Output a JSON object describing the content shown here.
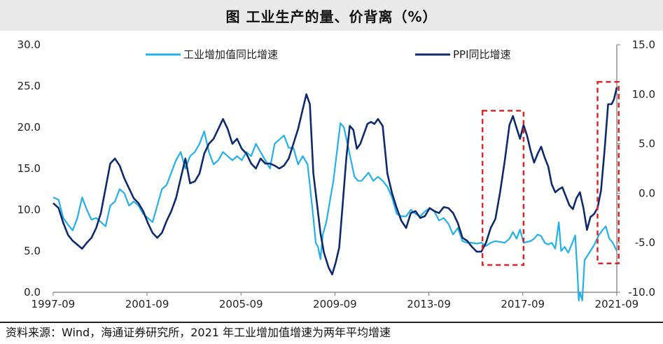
{
  "chart_data": {
    "type": "line",
    "title": "图  工业生产的量、价背离（%）",
    "left_axis": {
      "ylim": [
        0,
        30
      ],
      "ticks": [
        "0.0",
        "5.0",
        "10.0",
        "15.0",
        "20.0",
        "25.0",
        "30.0"
      ]
    },
    "right_axis": {
      "ylim": [
        -10,
        15
      ],
      "ticks": [
        "-10.0",
        "-5.0",
        "0.0",
        "5.0",
        "10.0",
        "15.0"
      ]
    },
    "x_ticks": [
      "1997-09",
      "2001-09",
      "2005-09",
      "2009-09",
      "2013-09",
      "2017-09",
      "2021-09"
    ],
    "x_range": [
      1997.67,
      2021.67
    ],
    "series": [
      {
        "name": "工业增加值同比增速",
        "axis": "left",
        "color": "#23b0e8",
        "points": [
          [
            1997.67,
            11.5
          ],
          [
            1997.9,
            11.2
          ],
          [
            1998.1,
            9.0
          ],
          [
            1998.3,
            8.2
          ],
          [
            1998.5,
            7.5
          ],
          [
            1998.7,
            9.0
          ],
          [
            1998.9,
            11.5
          ],
          [
            1999.1,
            10.0
          ],
          [
            1999.3,
            8.8
          ],
          [
            1999.5,
            9.0
          ],
          [
            1999.7,
            8.5
          ],
          [
            1999.9,
            8.0
          ],
          [
            2000.1,
            10.5
          ],
          [
            2000.3,
            11.0
          ],
          [
            2000.5,
            12.5
          ],
          [
            2000.7,
            12.0
          ],
          [
            2000.9,
            10.5
          ],
          [
            2001.1,
            11.0
          ],
          [
            2001.3,
            10.5
          ],
          [
            2001.5,
            9.5
          ],
          [
            2001.7,
            9.0
          ],
          [
            2001.9,
            8.5
          ],
          [
            2002.1,
            10.5
          ],
          [
            2002.3,
            12.5
          ],
          [
            2002.5,
            13.0
          ],
          [
            2002.7,
            14.5
          ],
          [
            2002.9,
            16.0
          ],
          [
            2003.1,
            17.0
          ],
          [
            2003.3,
            15.0
          ],
          [
            2003.5,
            16.5
          ],
          [
            2003.7,
            17.0
          ],
          [
            2003.9,
            18.0
          ],
          [
            2004.1,
            19.5
          ],
          [
            2004.3,
            17.0
          ],
          [
            2004.5,
            15.5
          ],
          [
            2004.7,
            16.0
          ],
          [
            2004.9,
            17.0
          ],
          [
            2005.1,
            16.5
          ],
          [
            2005.3,
            16.0
          ],
          [
            2005.5,
            16.5
          ],
          [
            2005.7,
            16.0
          ],
          [
            2005.9,
            17.0
          ],
          [
            2006.1,
            16.5
          ],
          [
            2006.3,
            18.0
          ],
          [
            2006.5,
            17.0
          ],
          [
            2006.7,
            16.0
          ],
          [
            2006.9,
            15.0
          ],
          [
            2007.1,
            18.0
          ],
          [
            2007.3,
            18.5
          ],
          [
            2007.5,
            19.0
          ],
          [
            2007.7,
            17.5
          ],
          [
            2007.9,
            17.5
          ],
          [
            2008.1,
            15.5
          ],
          [
            2008.3,
            16.5
          ],
          [
            2008.5,
            15.5
          ],
          [
            2008.6,
            13.0
          ],
          [
            2008.75,
            9.0
          ],
          [
            2008.85,
            6.0
          ],
          [
            2008.95,
            5.5
          ],
          [
            2009.05,
            4.0
          ],
          [
            2009.15,
            7.0
          ],
          [
            2009.3,
            8.5
          ],
          [
            2009.45,
            11.0
          ],
          [
            2009.6,
            13.5
          ],
          [
            2009.75,
            17.0
          ],
          [
            2009.9,
            20.5
          ],
          [
            2010.05,
            20.0
          ],
          [
            2010.2,
            18.0
          ],
          [
            2010.35,
            16.0
          ],
          [
            2010.5,
            14.0
          ],
          [
            2010.65,
            13.5
          ],
          [
            2010.8,
            13.5
          ],
          [
            2010.95,
            14.0
          ],
          [
            2011.1,
            14.5
          ],
          [
            2011.3,
            13.5
          ],
          [
            2011.5,
            14.0
          ],
          [
            2011.7,
            13.5
          ],
          [
            2011.9,
            12.8
          ],
          [
            2012.1,
            11.5
          ],
          [
            2012.3,
            9.5
          ],
          [
            2012.5,
            9.2
          ],
          [
            2012.7,
            9.2
          ],
          [
            2012.9,
            10.0
          ],
          [
            2013.1,
            9.5
          ],
          [
            2013.3,
            9.2
          ],
          [
            2013.5,
            9.8
          ],
          [
            2013.7,
            10.2
          ],
          [
            2013.9,
            9.8
          ],
          [
            2014.1,
            8.7
          ],
          [
            2014.3,
            9.0
          ],
          [
            2014.5,
            8.3
          ],
          [
            2014.7,
            7.0
          ],
          [
            2014.9,
            7.8
          ],
          [
            2015.1,
            6.2
          ],
          [
            2015.3,
            6.0
          ],
          [
            2015.5,
            6.0
          ],
          [
            2015.7,
            5.9
          ],
          [
            2015.9,
            6.0
          ],
          [
            2016.1,
            5.6
          ],
          [
            2016.3,
            6.0
          ],
          [
            2016.5,
            6.2
          ],
          [
            2016.7,
            6.1
          ],
          [
            2016.9,
            6.0
          ],
          [
            2017.1,
            6.5
          ],
          [
            2017.25,
            7.3
          ],
          [
            2017.4,
            6.5
          ],
          [
            2017.55,
            7.6
          ],
          [
            2017.7,
            6.0
          ],
          [
            2017.85,
            6.1
          ],
          [
            2018.0,
            6.2
          ],
          [
            2018.15,
            6.5
          ],
          [
            2018.3,
            7.0
          ],
          [
            2018.45,
            6.8
          ],
          [
            2018.6,
            6.0
          ],
          [
            2018.75,
            5.8
          ],
          [
            2018.9,
            6.0
          ],
          [
            2019.05,
            5.3
          ],
          [
            2019.2,
            8.5
          ],
          [
            2019.3,
            5.0
          ],
          [
            2019.45,
            5.5
          ],
          [
            2019.6,
            4.8
          ],
          [
            2019.75,
            5.8
          ],
          [
            2019.9,
            6.9
          ],
          [
            2020.0,
            2.0
          ],
          [
            2020.05,
            -1.0
          ],
          [
            2020.1,
            0.0
          ],
          [
            2020.2,
            -1.0
          ],
          [
            2020.3,
            3.9
          ],
          [
            2020.5,
            4.8
          ],
          [
            2020.7,
            5.7
          ],
          [
            2020.9,
            6.9
          ],
          [
            2021.05,
            7.5
          ],
          [
            2021.2,
            8.0
          ],
          [
            2021.35,
            6.5
          ],
          [
            2021.5,
            6.0
          ],
          [
            2021.67,
            5.0
          ]
        ]
      },
      {
        "name": "PPI同比增速",
        "axis": "right",
        "color": "#0f2a6b",
        "points": [
          [
            1997.67,
            -1.0
          ],
          [
            1997.9,
            -1.5
          ],
          [
            1998.1,
            -3.0
          ],
          [
            1998.3,
            -4.2
          ],
          [
            1998.5,
            -4.8
          ],
          [
            1998.7,
            -5.2
          ],
          [
            1998.9,
            -5.6
          ],
          [
            1999.1,
            -5.0
          ],
          [
            1999.3,
            -4.5
          ],
          [
            1999.5,
            -3.5
          ],
          [
            1999.7,
            -2.0
          ],
          [
            1999.9,
            0.5
          ],
          [
            2000.1,
            3.0
          ],
          [
            2000.3,
            3.5
          ],
          [
            2000.5,
            2.8
          ],
          [
            2000.7,
            1.5
          ],
          [
            2000.9,
            0.5
          ],
          [
            2001.1,
            -0.5
          ],
          [
            2001.3,
            -1.0
          ],
          [
            2001.5,
            -1.8
          ],
          [
            2001.7,
            -3.0
          ],
          [
            2001.9,
            -4.0
          ],
          [
            2002.1,
            -4.5
          ],
          [
            2002.3,
            -4.0
          ],
          [
            2002.5,
            -2.8
          ],
          [
            2002.7,
            -1.8
          ],
          [
            2002.9,
            -0.5
          ],
          [
            2003.1,
            1.5
          ],
          [
            2003.3,
            3.5
          ],
          [
            2003.5,
            1.0
          ],
          [
            2003.7,
            1.2
          ],
          [
            2003.9,
            2.0
          ],
          [
            2004.1,
            4.0
          ],
          [
            2004.3,
            5.0
          ],
          [
            2004.5,
            5.5
          ],
          [
            2004.7,
            6.5
          ],
          [
            2004.9,
            7.5
          ],
          [
            2005.1,
            6.5
          ],
          [
            2005.3,
            5.0
          ],
          [
            2005.5,
            5.5
          ],
          [
            2005.7,
            4.5
          ],
          [
            2005.9,
            4.0
          ],
          [
            2006.1,
            3.0
          ],
          [
            2006.3,
            2.5
          ],
          [
            2006.5,
            3.5
          ],
          [
            2006.7,
            3.0
          ],
          [
            2006.9,
            3.0
          ],
          [
            2007.1,
            2.8
          ],
          [
            2007.3,
            2.5
          ],
          [
            2007.5,
            2.8
          ],
          [
            2007.7,
            3.5
          ],
          [
            2007.9,
            5.0
          ],
          [
            2008.1,
            6.5
          ],
          [
            2008.3,
            8.5
          ],
          [
            2008.45,
            10.0
          ],
          [
            2008.6,
            9.0
          ],
          [
            2008.75,
            2.0
          ],
          [
            2008.9,
            -1.0
          ],
          [
            2009.05,
            -4.0
          ],
          [
            2009.2,
            -6.0
          ],
          [
            2009.4,
            -7.5
          ],
          [
            2009.55,
            -8.2
          ],
          [
            2009.7,
            -7.0
          ],
          [
            2009.85,
            -5.5
          ],
          [
            2010.0,
            -1.0
          ],
          [
            2010.15,
            3.5
          ],
          [
            2010.3,
            6.8
          ],
          [
            2010.45,
            6.4
          ],
          [
            2010.6,
            4.5
          ],
          [
            2010.75,
            5.0
          ],
          [
            2010.9,
            6.0
          ],
          [
            2011.05,
            7.0
          ],
          [
            2011.2,
            7.2
          ],
          [
            2011.35,
            7.0
          ],
          [
            2011.5,
            7.5
          ],
          [
            2011.7,
            6.8
          ],
          [
            2011.9,
            2.0
          ],
          [
            2012.1,
            0.0
          ],
          [
            2012.3,
            -1.5
          ],
          [
            2012.5,
            -2.8
          ],
          [
            2012.7,
            -3.5
          ],
          [
            2012.9,
            -2.0
          ],
          [
            2013.1,
            -1.8
          ],
          [
            2013.3,
            -2.5
          ],
          [
            2013.5,
            -2.3
          ],
          [
            2013.7,
            -1.5
          ],
          [
            2013.9,
            -1.8
          ],
          [
            2014.1,
            -2.0
          ],
          [
            2014.3,
            -1.4
          ],
          [
            2014.5,
            -1.5
          ],
          [
            2014.7,
            -2.0
          ],
          [
            2014.9,
            -3.0
          ],
          [
            2015.1,
            -4.5
          ],
          [
            2015.3,
            -4.8
          ],
          [
            2015.5,
            -5.4
          ],
          [
            2015.7,
            -5.9
          ],
          [
            2015.9,
            -5.9
          ],
          [
            2016.1,
            -5.0
          ],
          [
            2016.3,
            -3.5
          ],
          [
            2016.5,
            -2.6
          ],
          [
            2016.7,
            0.1
          ],
          [
            2016.9,
            3.3
          ],
          [
            2017.1,
            6.9
          ],
          [
            2017.25,
            7.8
          ],
          [
            2017.4,
            6.6
          ],
          [
            2017.55,
            5.5
          ],
          [
            2017.7,
            6.9
          ],
          [
            2017.85,
            5.8
          ],
          [
            2018.0,
            4.3
          ],
          [
            2018.15,
            3.1
          ],
          [
            2018.3,
            4.0
          ],
          [
            2018.45,
            4.7
          ],
          [
            2018.6,
            3.6
          ],
          [
            2018.75,
            2.7
          ],
          [
            2018.9,
            0.9
          ],
          [
            2019.05,
            0.1
          ],
          [
            2019.2,
            0.4
          ],
          [
            2019.35,
            0.6
          ],
          [
            2019.5,
            -0.3
          ],
          [
            2019.65,
            -1.2
          ],
          [
            2019.8,
            -1.6
          ],
          [
            2019.95,
            -0.5
          ],
          [
            2020.1,
            0.1
          ],
          [
            2020.25,
            -1.5
          ],
          [
            2020.4,
            -3.7
          ],
          [
            2020.55,
            -2.4
          ],
          [
            2020.7,
            -2.1
          ],
          [
            2020.85,
            -1.5
          ],
          [
            2021.0,
            0.3
          ],
          [
            2021.15,
            4.4
          ],
          [
            2021.3,
            9.0
          ],
          [
            2021.45,
            9.0
          ],
          [
            2021.55,
            9.5
          ],
          [
            2021.67,
            10.7
          ]
        ]
      }
    ],
    "highlight_boxes": [
      {
        "x": [
          2015.95,
          2017.7
        ],
        "y_left": [
          3.3,
          22.0
        ]
      },
      {
        "x": [
          2020.85,
          2021.75
        ],
        "y_left": [
          3.5,
          25.5
        ]
      }
    ]
  },
  "source": "资料来源：Wind，海通证券研究所，2021 年工业增加值增速为两年平均增速"
}
